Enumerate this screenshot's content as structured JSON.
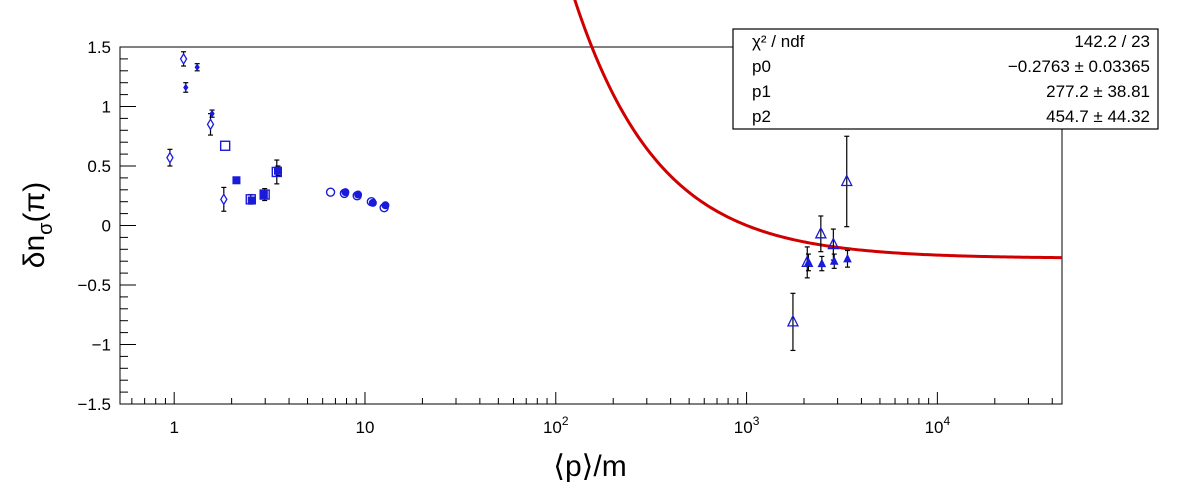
{
  "chart_data": {
    "type": "scatter",
    "title": "",
    "xlabel": "⟨p⟩/m",
    "ylabel_main": "δn",
    "ylabel_sub": "σ",
    "ylabel_suffix": "(π)",
    "xscale": "log",
    "xlim": [
      0.52,
      45000
    ],
    "ylim": [
      -1.5,
      1.5
    ],
    "grid": false,
    "x_ticks": [
      {
        "value": 1,
        "base": "1",
        "exp": ""
      },
      {
        "value": 10,
        "base": "10",
        "exp": ""
      },
      {
        "value": 100,
        "base": "10",
        "exp": "2"
      },
      {
        "value": 1000,
        "base": "10",
        "exp": "3"
      },
      {
        "value": 10000,
        "base": "10",
        "exp": "4"
      }
    ],
    "y_ticks": [
      {
        "value": 1.5,
        "label": "1.5"
      },
      {
        "value": 1,
        "label": "1"
      },
      {
        "value": 0.5,
        "label": "0.5"
      },
      {
        "value": 0,
        "label": "0"
      },
      {
        "value": -0.5,
        "label": "−0.5"
      },
      {
        "value": -1,
        "label": "−1"
      },
      {
        "value": -1.5,
        "label": "−1.5"
      }
    ],
    "stats_box": {
      "placement": "top-right",
      "rows": [
        {
          "label": "χ² / ndf",
          "value": "142.2 / 23"
        },
        {
          "label": "p0",
          "value": "−0.2763 ± 0.03365"
        },
        {
          "label": "p1",
          "value": "277.2 ± 38.81"
        },
        {
          "label": "p2",
          "value": "454.7 ± 44.32"
        }
      ]
    },
    "fit": {
      "color": "#d00000",
      "params": {
        "p0": -0.2763,
        "p1": 277.2,
        "p2": 454.7
      },
      "x_range": [
        0.52,
        45000
      ]
    },
    "series": [
      {
        "marker": "open-diamond",
        "color": "#1a1adc",
        "points": [
          {
            "x": 0.95,
            "y": 0.57,
            "err": 0.07
          },
          {
            "x": 1.12,
            "y": 1.4,
            "err": 0.06
          },
          {
            "x": 1.55,
            "y": 0.85,
            "err": 0.09
          },
          {
            "x": 1.82,
            "y": 0.22,
            "err": 0.1
          }
        ]
      },
      {
        "marker": "filled-diamond",
        "color": "#1a1adc",
        "points": [
          {
            "x": 1.15,
            "y": 1.16,
            "err": 0.04
          },
          {
            "x": 1.32,
            "y": 1.33,
            "err": 0.03
          },
          {
            "x": 1.58,
            "y": 0.94,
            "err": 0.03
          }
        ]
      },
      {
        "marker": "open-square",
        "color": "#1a1adc",
        "points": [
          {
            "x": 1.85,
            "y": 0.67,
            "err": 0.0
          },
          {
            "x": 2.52,
            "y": 0.22,
            "err": 0.04
          },
          {
            "x": 2.98,
            "y": 0.26,
            "err": 0.05
          },
          {
            "x": 3.45,
            "y": 0.45,
            "err": 0.1
          }
        ]
      },
      {
        "marker": "filled-square",
        "color": "#1a1adc",
        "points": [
          {
            "x": 2.12,
            "y": 0.38,
            "err": 0.02
          },
          {
            "x": 2.55,
            "y": 0.21,
            "err": 0.02
          },
          {
            "x": 2.95,
            "y": 0.26,
            "err": 0.02
          },
          {
            "x": 3.5,
            "y": 0.46,
            "err": 0.04
          }
        ]
      },
      {
        "marker": "open-circle",
        "color": "#1a1adc",
        "points": [
          {
            "x": 6.6,
            "y": 0.28,
            "err": 0.0
          },
          {
            "x": 7.8,
            "y": 0.27,
            "err": 0.0
          },
          {
            "x": 9.1,
            "y": 0.25,
            "err": 0.0
          },
          {
            "x": 10.8,
            "y": 0.2,
            "err": 0.0
          },
          {
            "x": 12.6,
            "y": 0.15,
            "err": 0.0
          }
        ]
      },
      {
        "marker": "filled-circle",
        "color": "#1a1adc",
        "points": [
          {
            "x": 7.9,
            "y": 0.28,
            "err": 0.0
          },
          {
            "x": 9.2,
            "y": 0.26,
            "err": 0.0
          },
          {
            "x": 11.0,
            "y": 0.19,
            "err": 0.0
          },
          {
            "x": 12.8,
            "y": 0.17,
            "err": 0.0
          }
        ]
      },
      {
        "marker": "open-triangle",
        "color": "#1a1adc",
        "points": [
          {
            "x": 1750,
            "y": -0.81,
            "err": 0.24
          },
          {
            "x": 2080,
            "y": -0.31,
            "err": 0.13
          },
          {
            "x": 2450,
            "y": -0.07,
            "err": 0.15
          },
          {
            "x": 2850,
            "y": -0.16,
            "err": 0.13
          },
          {
            "x": 3350,
            "y": 0.37,
            "err": 0.38
          }
        ]
      },
      {
        "marker": "filled-triangle",
        "color": "#1a1adc",
        "points": [
          {
            "x": 2110,
            "y": -0.31,
            "err": 0.07
          },
          {
            "x": 2480,
            "y": -0.32,
            "err": 0.06
          },
          {
            "x": 2880,
            "y": -0.3,
            "err": 0.06
          },
          {
            "x": 3380,
            "y": -0.28,
            "err": 0.07
          }
        ]
      }
    ]
  }
}
